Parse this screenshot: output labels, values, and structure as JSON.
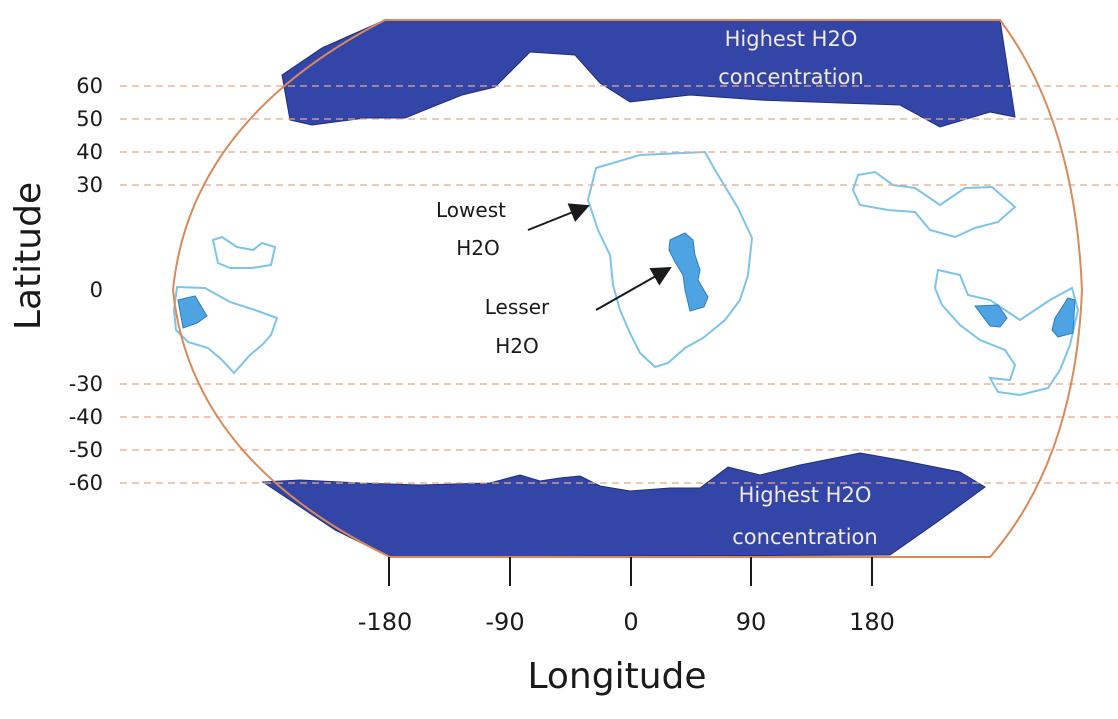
{
  "map": {
    "axes": {
      "x_title": "Longitude",
      "y_title": "Latitude",
      "x_ticks": [
        "-180",
        "-90",
        "0",
        "90",
        "180"
      ],
      "y_ticks_upper": [
        "60",
        "50",
        "40",
        "30"
      ],
      "y_tick_zero": "0",
      "y_ticks_lower": [
        "-30",
        "-40",
        "-50",
        "-60"
      ]
    },
    "annotations": {
      "highest_top": [
        "Highest H2O",
        "concentration"
      ],
      "highest_bottom": [
        "Highest H2O",
        "concentration"
      ],
      "lowest": [
        "Lowest",
        "H2O"
      ],
      "lesser": [
        "Lesser",
        "H2O"
      ]
    },
    "colors": {
      "highest": "#3346a8",
      "lesser": "#4ea3e3",
      "lowest_outline": "#7cc4e8",
      "border": "#d98a5a",
      "gridline": "#e7a98a"
    }
  }
}
